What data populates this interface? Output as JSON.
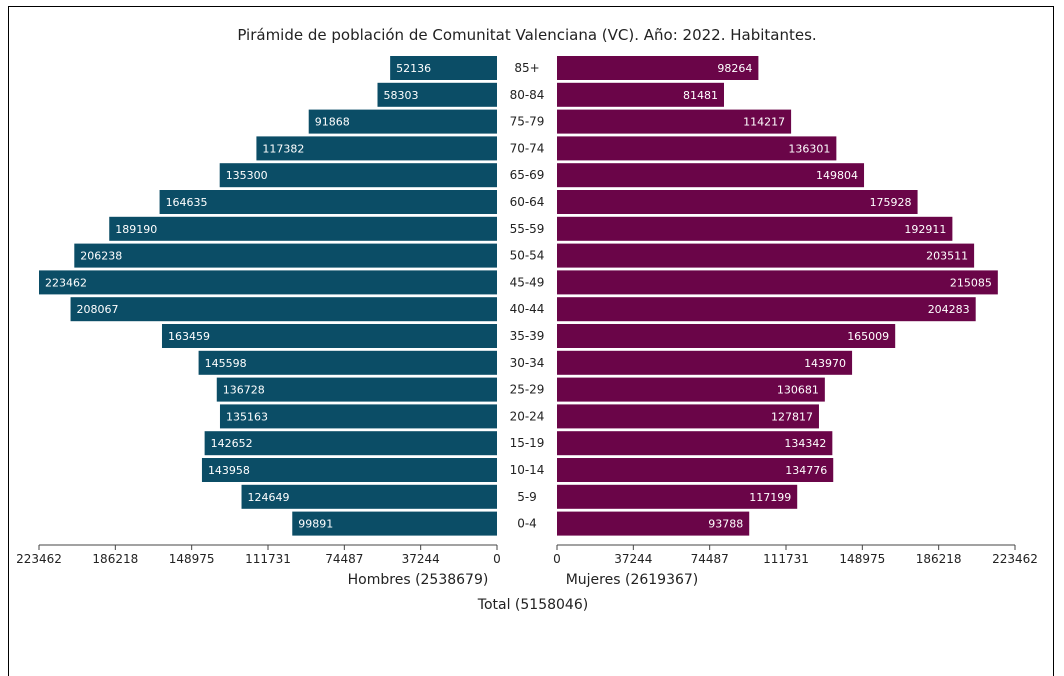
{
  "chart_data": {
    "type": "bar",
    "title": "Pirámide de población de Comunitat Valenciana (VC). Año: 2022. Habitantes.",
    "categories": [
      "0-4",
      "5-9",
      "10-14",
      "15-19",
      "20-24",
      "25-29",
      "30-34",
      "35-39",
      "40-44",
      "45-49",
      "50-54",
      "55-59",
      "60-64",
      "65-69",
      "70-74",
      "75-79",
      "80-84",
      "85+"
    ],
    "series": [
      {
        "name": "Hombres",
        "values": [
          99891,
          124649,
          143958,
          142652,
          135163,
          136728,
          145598,
          163459,
          208067,
          223462,
          206238,
          189190,
          164635,
          135300,
          117382,
          91868,
          58303,
          52136
        ]
      },
      {
        "name": "Mujeres",
        "values": [
          93788,
          117199,
          134776,
          134342,
          127817,
          130681,
          143970,
          165009,
          204283,
          215085,
          203511,
          192911,
          175928,
          149804,
          136301,
          114217,
          81481,
          98264
        ]
      }
    ],
    "colors": {
      "Hombres": "#0b4d66",
      "Mujeres": "#6a0548"
    },
    "xlim": [
      0,
      223462
    ],
    "left_ticks": [
      "223462",
      "186218",
      "148975",
      "111731",
      "74487",
      "37244",
      "0"
    ],
    "right_ticks": [
      "0",
      "37244",
      "74487",
      "111731",
      "148975",
      "186218",
      "223462"
    ],
    "xlabel_left": "Hombres (2538679)",
    "xlabel_right": "Mujeres (2619367)",
    "xlabel_total": "Total (5158046)",
    "grid": false,
    "legend": "none"
  }
}
